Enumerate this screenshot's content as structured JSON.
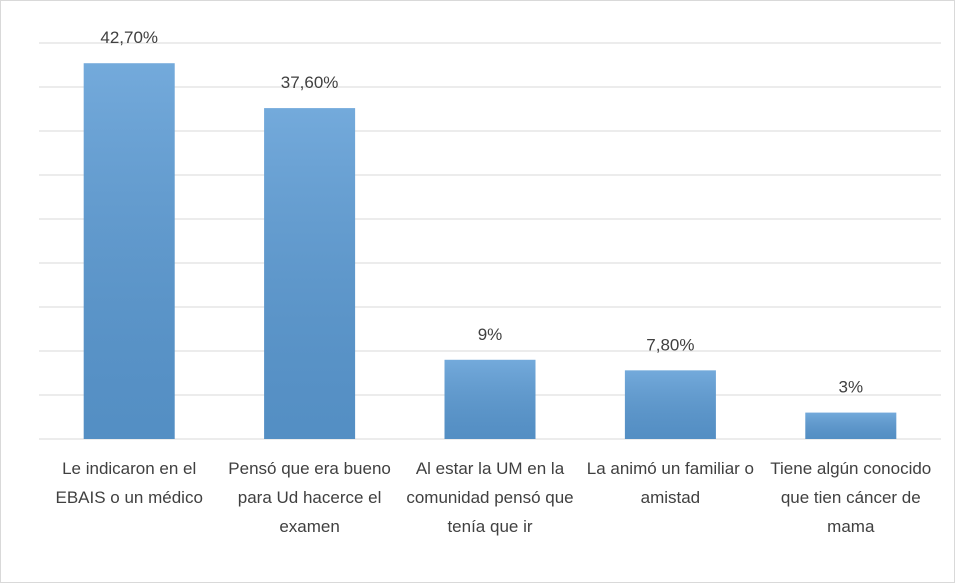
{
  "chart_data": {
    "type": "bar",
    "categories": [
      "Le indicaron en el EBAIS o un médico",
      "Pensó que era bueno para Ud hacerce el examen",
      "Al estar la UM en la comunidad pensó que tenía que ir",
      "La animó un familiar o amistad",
      "Tiene algún conocido que tien cáncer de mama"
    ],
    "values": [
      42.7,
      37.6,
      9,
      7.8,
      3
    ],
    "value_labels": [
      "42,70%",
      "37,60%",
      "9%",
      "7,80%",
      "3%"
    ],
    "color": "#5b9bd5",
    "ylim": [
      0,
      45
    ],
    "yticks": [
      0,
      5,
      10,
      15,
      20,
      25,
      30,
      35,
      40,
      45
    ],
    "grid": true
  }
}
